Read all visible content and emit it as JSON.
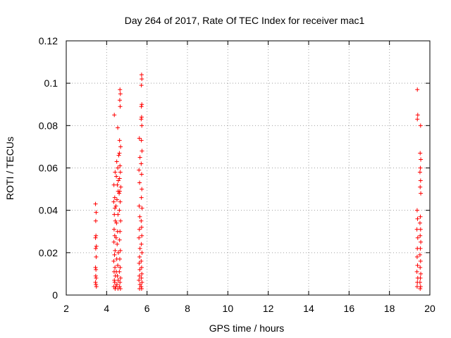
{
  "chart_data": {
    "type": "scatter",
    "title": "Day 264 of 2017, Rate Of TEC Index for receiver mac1",
    "xlabel": "GPS time / hours",
    "ylabel": "ROTI / TECUs",
    "xlim": [
      2,
      20
    ],
    "ylim": [
      0,
      0.12
    ],
    "xticks": [
      2,
      4,
      6,
      8,
      10,
      12,
      14,
      16,
      18,
      20
    ],
    "xtick_labels": [
      "2",
      "4",
      "6",
      "8",
      "10",
      "12",
      "14",
      "16",
      "18",
      "20"
    ],
    "yticks": [
      0,
      0.02,
      0.04,
      0.06,
      0.08,
      0.1,
      0.12
    ],
    "ytick_labels": [
      "0",
      "0.02",
      "0.04",
      "0.06",
      "0.08",
      "0.1",
      "0.12"
    ],
    "grid": true,
    "marker": "plus",
    "color": "#ff0000",
    "points": [
      [
        3.45,
        0.043
      ],
      [
        3.48,
        0.039
      ],
      [
        3.46,
        0.035
      ],
      [
        3.47,
        0.028
      ],
      [
        3.45,
        0.027
      ],
      [
        3.49,
        0.023
      ],
      [
        3.46,
        0.022
      ],
      [
        3.48,
        0.018
      ],
      [
        3.45,
        0.013
      ],
      [
        3.47,
        0.012
      ],
      [
        3.46,
        0.009
      ],
      [
        3.48,
        0.008
      ],
      [
        3.45,
        0.006
      ],
      [
        3.47,
        0.005
      ],
      [
        3.49,
        0.004
      ],
      [
        4.38,
        0.085
      ],
      [
        4.42,
        0.058
      ],
      [
        4.36,
        0.052
      ],
      [
        4.4,
        0.046
      ],
      [
        4.35,
        0.044
      ],
      [
        4.41,
        0.041
      ],
      [
        4.38,
        0.038
      ],
      [
        4.43,
        0.035
      ],
      [
        4.37,
        0.031
      ],
      [
        4.4,
        0.028
      ],
      [
        4.36,
        0.025
      ],
      [
        4.42,
        0.021
      ],
      [
        4.39,
        0.019
      ],
      [
        4.35,
        0.016
      ],
      [
        4.41,
        0.013
      ],
      [
        4.37,
        0.011
      ],
      [
        4.43,
        0.009
      ],
      [
        4.38,
        0.007
      ],
      [
        4.4,
        0.006
      ],
      [
        4.36,
        0.004
      ],
      [
        4.42,
        0.003
      ],
      [
        4.5,
        0.063
      ],
      [
        4.55,
        0.06
      ],
      [
        4.48,
        0.056
      ],
      [
        4.53,
        0.052
      ],
      [
        4.57,
        0.049
      ],
      [
        4.51,
        0.045
      ],
      [
        4.46,
        0.042
      ],
      [
        4.56,
        0.038
      ],
      [
        4.49,
        0.034
      ],
      [
        4.54,
        0.03
      ],
      [
        4.47,
        0.027
      ],
      [
        4.52,
        0.024
      ],
      [
        4.58,
        0.02
      ],
      [
        4.5,
        0.017
      ],
      [
        4.55,
        0.014
      ],
      [
        4.48,
        0.011
      ],
      [
        4.53,
        0.009
      ],
      [
        4.57,
        0.007
      ],
      [
        4.51,
        0.005
      ],
      [
        4.46,
        0.004
      ],
      [
        4.56,
        0.003
      ],
      [
        4.55,
        0.079
      ],
      [
        4.6,
        0.066
      ],
      [
        4.58,
        0.054
      ],
      [
        4.62,
        0.048
      ],
      [
        4.66,
        0.097
      ],
      [
        4.68,
        0.095
      ],
      [
        4.65,
        0.092
      ],
      [
        4.67,
        0.089
      ],
      [
        4.64,
        0.073
      ],
      [
        4.69,
        0.07
      ],
      [
        4.63,
        0.067
      ],
      [
        4.66,
        0.061
      ],
      [
        4.68,
        0.058
      ],
      [
        4.64,
        0.055
      ],
      [
        4.7,
        0.051
      ],
      [
        4.65,
        0.049
      ],
      [
        4.67,
        0.044
      ],
      [
        4.63,
        0.04
      ],
      [
        4.69,
        0.035
      ],
      [
        4.66,
        0.03
      ],
      [
        4.64,
        0.026
      ],
      [
        4.68,
        0.021
      ],
      [
        4.65,
        0.017
      ],
      [
        4.67,
        0.013
      ],
      [
        4.63,
        0.011
      ],
      [
        4.69,
        0.008
      ],
      [
        4.66,
        0.006
      ],
      [
        4.64,
        0.004
      ],
      [
        4.68,
        0.003
      ],
      [
        5.62,
        0.074
      ],
      [
        5.65,
        0.065
      ],
      [
        5.6,
        0.059
      ],
      [
        5.63,
        0.053
      ],
      [
        5.61,
        0.042
      ],
      [
        5.64,
        0.037
      ],
      [
        5.62,
        0.031
      ],
      [
        5.6,
        0.027
      ],
      [
        5.65,
        0.022
      ],
      [
        5.63,
        0.018
      ],
      [
        5.61,
        0.015
      ],
      [
        5.64,
        0.012
      ],
      [
        5.62,
        0.009
      ],
      [
        5.6,
        0.007
      ],
      [
        5.65,
        0.005
      ],
      [
        5.63,
        0.003
      ],
      [
        5.73,
        0.104
      ],
      [
        5.74,
        0.102
      ],
      [
        5.72,
        0.099
      ],
      [
        5.74,
        0.09
      ],
      [
        5.72,
        0.089
      ],
      [
        5.73,
        0.084
      ],
      [
        5.71,
        0.083
      ],
      [
        5.74,
        0.08
      ],
      [
        5.72,
        0.073
      ],
      [
        5.75,
        0.068
      ],
      [
        5.71,
        0.062
      ],
      [
        5.73,
        0.057
      ],
      [
        5.74,
        0.05
      ],
      [
        5.72,
        0.046
      ],
      [
        5.75,
        0.041
      ],
      [
        5.71,
        0.035
      ],
      [
        5.73,
        0.032
      ],
      [
        5.74,
        0.028
      ],
      [
        5.72,
        0.024
      ],
      [
        5.75,
        0.02
      ],
      [
        5.71,
        0.016
      ],
      [
        5.73,
        0.013
      ],
      [
        5.74,
        0.01
      ],
      [
        5.72,
        0.008
      ],
      [
        5.75,
        0.006
      ],
      [
        5.71,
        0.004
      ],
      [
        5.73,
        0.003
      ],
      [
        19.38,
        0.097
      ],
      [
        19.4,
        0.085
      ],
      [
        19.38,
        0.083
      ],
      [
        19.37,
        0.04
      ],
      [
        19.39,
        0.036
      ],
      [
        19.36,
        0.031
      ],
      [
        19.4,
        0.027
      ],
      [
        19.38,
        0.022
      ],
      [
        19.37,
        0.018
      ],
      [
        19.39,
        0.014
      ],
      [
        19.36,
        0.011
      ],
      [
        19.4,
        0.008
      ],
      [
        19.38,
        0.006
      ],
      [
        19.37,
        0.004
      ],
      [
        19.54,
        0.08
      ],
      [
        19.52,
        0.067
      ],
      [
        19.55,
        0.064
      ],
      [
        19.53,
        0.06
      ],
      [
        19.51,
        0.058
      ],
      [
        19.54,
        0.054
      ],
      [
        19.52,
        0.051
      ],
      [
        19.55,
        0.048
      ],
      [
        19.53,
        0.037
      ],
      [
        19.51,
        0.034
      ],
      [
        19.54,
        0.031
      ],
      [
        19.52,
        0.028
      ],
      [
        19.55,
        0.025
      ],
      [
        19.53,
        0.022
      ],
      [
        19.51,
        0.019
      ],
      [
        19.54,
        0.016
      ],
      [
        19.52,
        0.013
      ],
      [
        19.55,
        0.01
      ],
      [
        19.53,
        0.008
      ],
      [
        19.51,
        0.006
      ],
      [
        19.54,
        0.004
      ],
      [
        19.52,
        0.003
      ]
    ]
  }
}
